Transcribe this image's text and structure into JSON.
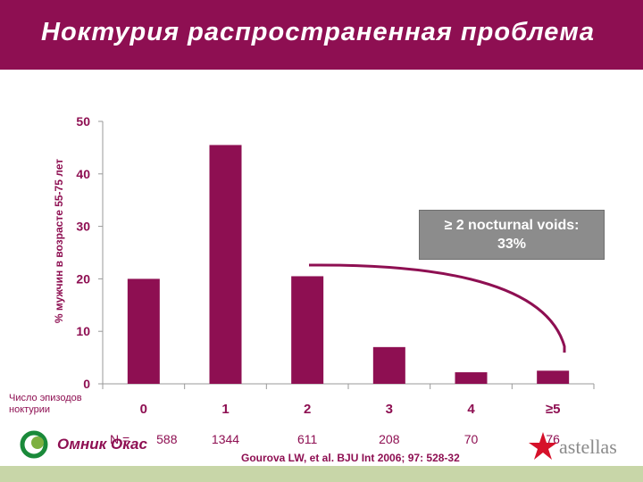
{
  "header": {
    "title": "Ноктурия распространенная проблема"
  },
  "chart_data": {
    "type": "bar",
    "ylabel": "% мужчин в возрасте 55-75 лет",
    "xlabel": "Число эпизодов\nноктурии",
    "categories": [
      "0",
      "1",
      "2",
      "3",
      "4",
      "≥5"
    ],
    "values": [
      20,
      45.5,
      20.5,
      7,
      2.2,
      2.5
    ],
    "n_label": "N = ",
    "n_values": [
      "588",
      "1344",
      "611",
      "208",
      "70",
      "76"
    ],
    "ylim": [
      0,
      50
    ],
    "yticks": [
      "0",
      "10",
      "20",
      "30",
      "40",
      "50"
    ],
    "bar_color": "#8e0f52",
    "annotation": "≥ 2 nocturnal voids:\n33%"
  },
  "footer": {
    "citation": "Gourova LW, et al. BJU Int 2006; 97: 528-32",
    "left_logo": "Омник Окас",
    "right_logo": "astellas",
    "band_color": "#c8d6a8"
  }
}
